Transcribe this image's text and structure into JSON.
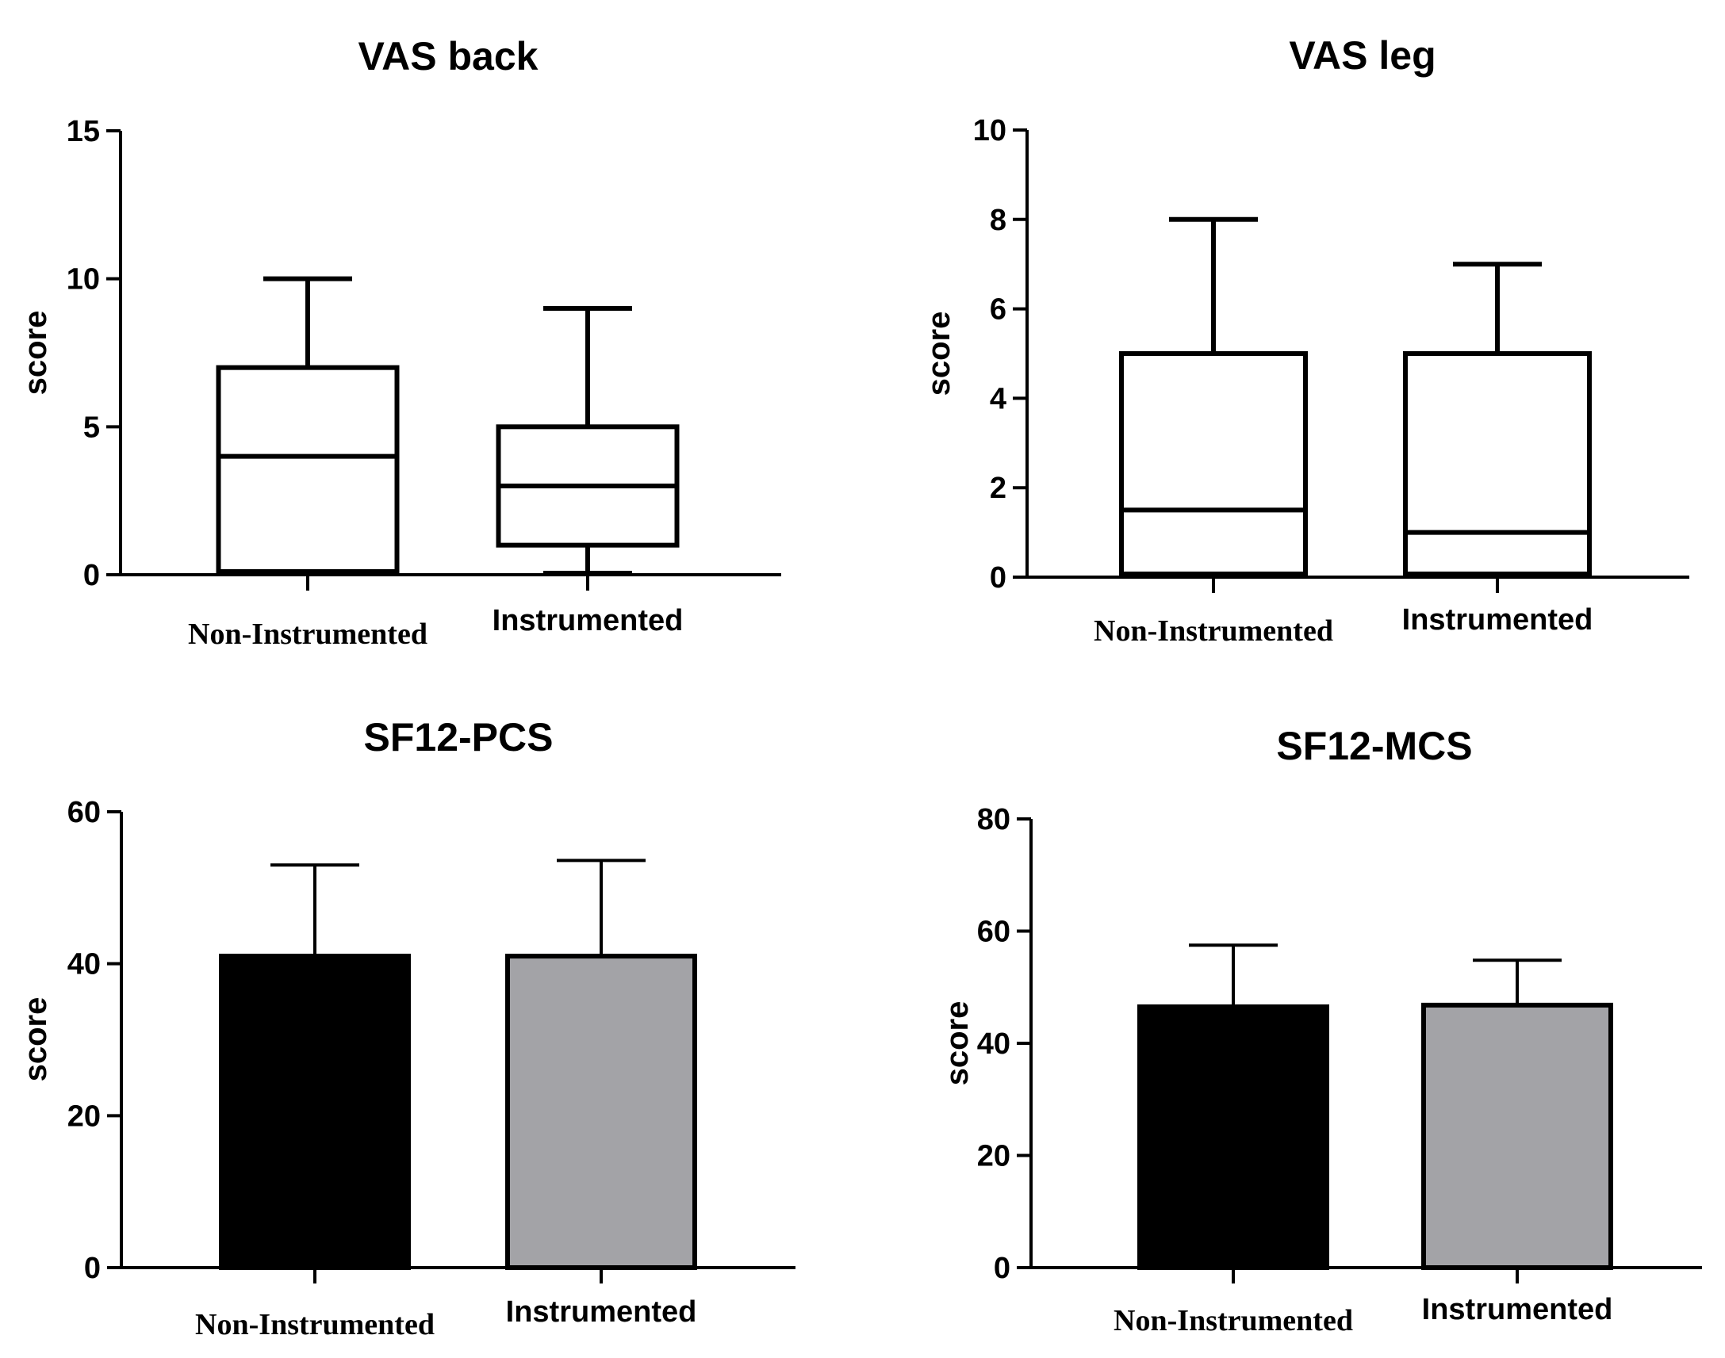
{
  "chart_data": [
    {
      "id": "vas-back",
      "type": "box",
      "title": "VAS back",
      "ylabel": "score",
      "ylim": [
        0,
        15
      ],
      "yticks": [
        0,
        5,
        10,
        15
      ],
      "categories": [
        "Non-Instrumented",
        "Instrumented"
      ],
      "boxes": [
        {
          "name": "Non-Instrumented",
          "min": 0,
          "q1": 0,
          "median": 4,
          "q3": 7,
          "max": 10
        },
        {
          "name": "Instrumented",
          "min": 0,
          "q1": 1,
          "median": 3,
          "q3": 5,
          "max": 9
        }
      ]
    },
    {
      "id": "vas-leg",
      "type": "box",
      "title": "VAS leg",
      "ylabel": "score",
      "ylim": [
        0,
        10
      ],
      "yticks": [
        0,
        2,
        4,
        6,
        8,
        10
      ],
      "categories": [
        "Non-Instrumented",
        "Instrumented"
      ],
      "boxes": [
        {
          "name": "Non-Instrumented",
          "min": 0,
          "q1": 0,
          "median": 1.5,
          "q3": 5,
          "max": 8
        },
        {
          "name": "Instrumented",
          "min": 0,
          "q1": 0,
          "median": 1,
          "q3": 5,
          "max": 7
        }
      ]
    },
    {
      "id": "sf12-pcs",
      "type": "bar",
      "title": "SF12-PCS",
      "ylabel": "score",
      "ylim": [
        0,
        60
      ],
      "yticks": [
        0,
        20,
        40,
        60
      ],
      "categories": [
        "Non-Instrumented",
        "Instrumented"
      ],
      "values": [
        41,
        41
      ],
      "errors": [
        12,
        12.6
      ],
      "colors": [
        "#000000",
        "#a3a3a7"
      ]
    },
    {
      "id": "sf12-mcs",
      "type": "bar",
      "title": "SF12-MCS",
      "ylabel": "score",
      "ylim": [
        0,
        80
      ],
      "yticks": [
        0,
        20,
        40,
        60,
        80
      ],
      "categories": [
        "Non-Instrumented",
        "Instrumented"
      ],
      "values": [
        46.5,
        46.8
      ],
      "errors": [
        11,
        8
      ],
      "colors": [
        "#000000",
        "#a3a3a7"
      ]
    }
  ]
}
